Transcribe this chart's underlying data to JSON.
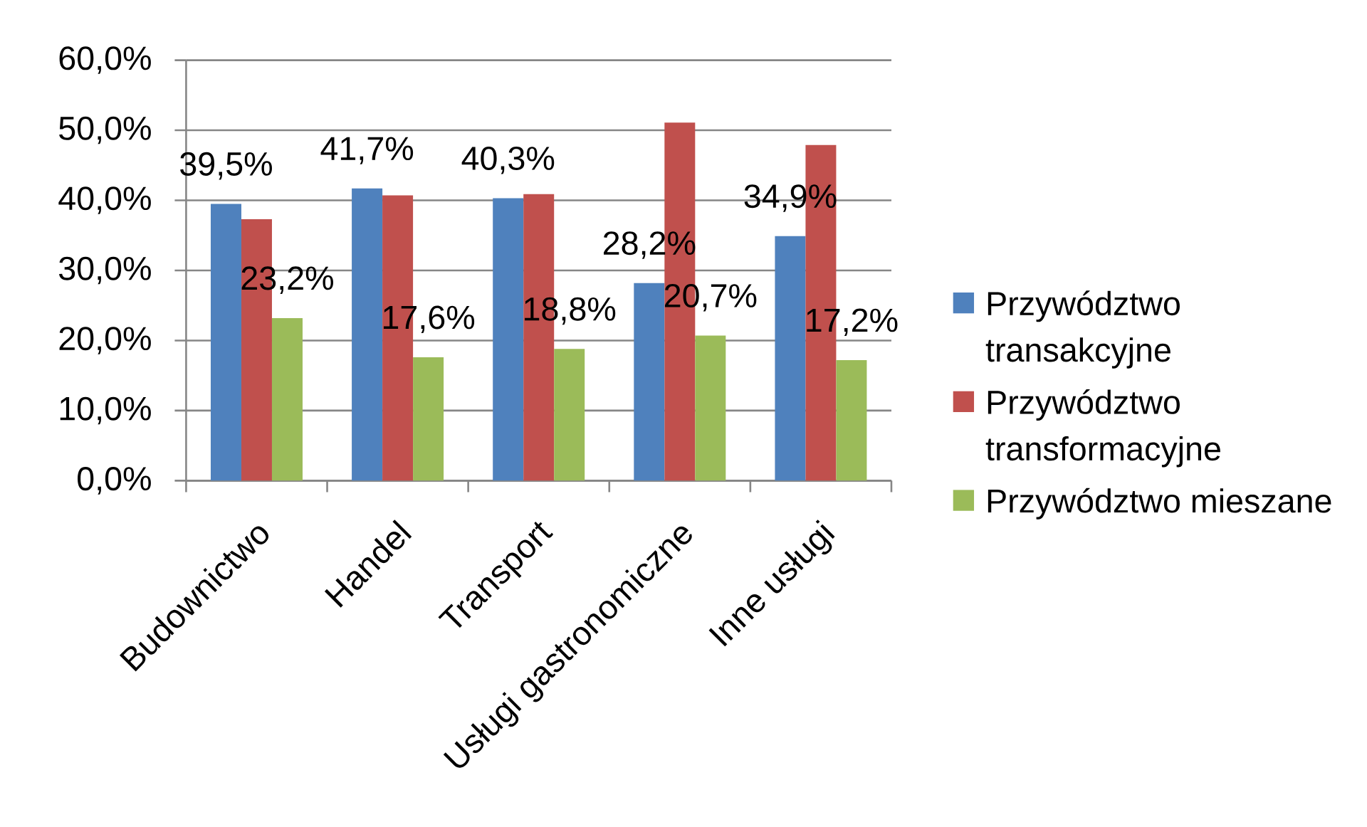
{
  "chart_data": {
    "type": "bar",
    "categories": [
      "Budownictwo",
      "Handel",
      "Transport",
      "Usługi gastronomiczne",
      "Inne usługi"
    ],
    "series": [
      {
        "name": "Przywództwo transakcyjne",
        "color": "#4f81bd",
        "values": [
          39.5,
          41.7,
          40.3,
          28.2,
          34.9
        ],
        "value_labels": [
          "39,5%",
          "41,7%",
          "40,3%",
          "28,2%",
          "34,9%"
        ]
      },
      {
        "name": "Przywództwo transformacyjne",
        "color": "#c0504d",
        "values": [
          37.3,
          40.7,
          40.9,
          51.1,
          47.9
        ]
      },
      {
        "name": "Przywództwo mieszane",
        "color": "#9bbb59",
        "values": [
          23.2,
          17.6,
          18.8,
          20.7,
          17.2
        ],
        "value_labels": [
          "23,2%",
          "17,6%",
          "18,8%",
          "20,7%",
          "17,2%"
        ]
      }
    ],
    "ylim": [
      0,
      60
    ],
    "yticks": [
      {
        "value": 0,
        "label": "0,0%"
      },
      {
        "value": 10,
        "label": "10,0%"
      },
      {
        "value": 20,
        "label": "20,0%"
      },
      {
        "value": 30,
        "label": "30,0%"
      },
      {
        "value": 40,
        "label": "40,0%"
      },
      {
        "value": 50,
        "label": "50,0%"
      },
      {
        "value": 60,
        "label": "60,0%"
      }
    ],
    "grid": "y",
    "legend": "right"
  }
}
